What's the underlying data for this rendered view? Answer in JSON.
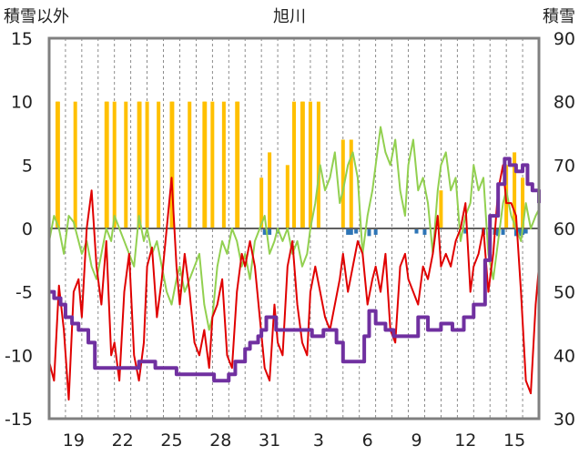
{
  "chart_data": {
    "type": "line",
    "title": "旭川",
    "left_axis_label": "積雪以外",
    "right_axis_label": "積雪",
    "left_axis": {
      "ylim": [
        -15,
        15
      ],
      "ticks": [
        "-15",
        "-10",
        "-5",
        "0",
        "5",
        "10",
        "15"
      ]
    },
    "right_axis": {
      "ylim": [
        30,
        90
      ],
      "ticks": [
        "30",
        "40",
        "50",
        "60",
        "70",
        "80",
        "90"
      ]
    },
    "x_tick_labels": [
      "19",
      "22",
      "25",
      "28",
      "31",
      "3",
      "6",
      "9",
      "12",
      "15"
    ],
    "grid": "vertical dashed",
    "colors": {
      "temperature": "#e00000",
      "sunshine": "#ffc000",
      "wind": "#92d050",
      "precip": "#2e75b6",
      "snow_depth": "#7030a0",
      "frame": "#808080",
      "zero_line": "#606060"
    },
    "series": [
      {
        "key": "temperature",
        "axis": "left",
        "x": [
          17.0,
          17.3,
          17.6,
          17.9,
          18.2,
          18.5,
          18.8,
          19.0,
          19.3,
          19.6,
          19.9,
          20.2,
          20.5,
          20.8,
          21.0,
          21.3,
          21.6,
          21.9,
          22.2,
          22.5,
          22.8,
          23.0,
          23.3,
          23.6,
          23.9,
          24.2,
          24.5,
          24.8,
          25.0,
          25.3,
          25.6,
          25.9,
          26.2,
          26.5,
          26.8,
          27.0,
          27.3,
          27.6,
          27.9,
          28.2,
          28.5,
          28.8,
          29.0,
          29.3,
          29.6,
          29.9,
          30.2,
          30.5,
          30.8,
          31.0,
          31.3,
          31.6,
          31.9,
          32.2,
          32.5,
          32.8,
          33.0,
          33.3,
          33.6,
          33.9,
          34.2,
          34.5,
          34.8,
          35.0,
          35.3,
          35.6,
          35.9,
          36.2,
          36.5,
          36.8,
          37.0,
          37.3,
          37.6,
          37.9,
          38.2,
          38.5,
          38.8,
          39.0,
          39.3,
          39.6,
          39.9,
          40.2,
          40.5,
          40.8,
          41.0,
          41.3,
          41.6,
          41.9,
          42.2,
          42.5,
          42.8,
          43.0,
          43.3,
          43.6,
          43.9,
          44.2,
          44.5,
          44.8,
          45.0,
          45.3,
          45.6,
          45.9,
          46.2,
          46.5,
          46.8,
          47.0
        ],
        "values": [
          -10.5,
          -12,
          -4.5,
          -8,
          -13.5,
          -5,
          -4,
          -7,
          0,
          3,
          -3,
          -6,
          -1,
          -10,
          -9,
          -12,
          -5,
          -2,
          -10,
          -12,
          -9,
          -3,
          -1.5,
          -7,
          -4,
          0,
          4,
          -3,
          -6,
          -2,
          -5,
          -9,
          -10,
          -8,
          -11,
          -7,
          -6,
          -4,
          -10,
          -11,
          -5,
          -2,
          -3,
          -1,
          -3,
          -7,
          -11,
          -12,
          -6,
          -9,
          -10,
          -3,
          -1,
          -6,
          -9,
          -10,
          -5,
          -3,
          -5,
          -7,
          -8,
          -6,
          -4,
          -2,
          -5,
          -3,
          -1,
          -2,
          -6,
          -4,
          -3,
          -5,
          -2,
          -8,
          -9,
          -3,
          -2,
          -4,
          -5,
          -6,
          -3,
          -4,
          -2,
          1,
          -3,
          -2,
          -3,
          -1,
          0,
          2,
          -5,
          -3,
          -2,
          0,
          -5,
          -2,
          3,
          5,
          2,
          2,
          1,
          -5,
          -12,
          -13,
          -6,
          -3
        ]
      },
      {
        "key": "wind",
        "axis": "left",
        "x": [
          17.0,
          17.3,
          17.6,
          17.9,
          18.2,
          18.5,
          18.8,
          19.0,
          19.3,
          19.6,
          19.9,
          20.2,
          20.5,
          20.8,
          21.0,
          21.3,
          21.6,
          21.9,
          22.2,
          22.5,
          22.8,
          23.0,
          23.3,
          23.6,
          23.9,
          24.2,
          24.5,
          24.8,
          25.0,
          25.3,
          25.6,
          25.9,
          26.2,
          26.5,
          26.8,
          27.0,
          27.3,
          27.6,
          27.9,
          28.2,
          28.5,
          28.8,
          29.0,
          29.3,
          29.6,
          29.9,
          30.2,
          30.5,
          30.8,
          31.0,
          31.3,
          31.6,
          31.9,
          32.2,
          32.5,
          32.8,
          33.0,
          33.3,
          33.6,
          33.9,
          34.2,
          34.5,
          34.8,
          35.0,
          35.3,
          35.6,
          35.9,
          36.2,
          36.5,
          36.8,
          37.0,
          37.3,
          37.6,
          37.9,
          38.2,
          38.5,
          38.8,
          39.0,
          39.3,
          39.6,
          39.9,
          40.2,
          40.5,
          40.8,
          41.0,
          41.3,
          41.6,
          41.9,
          42.2,
          42.5,
          42.8,
          43.0,
          43.3,
          43.6,
          43.9,
          44.2,
          44.5,
          44.8,
          45.0,
          45.3,
          45.6,
          45.9,
          46.2,
          46.5,
          46.8,
          47.0
        ],
        "values": [
          -1,
          1,
          0,
          -2,
          1,
          0.5,
          -1,
          -2,
          -1,
          -3,
          -4,
          -2,
          0,
          -1,
          1,
          0,
          -1,
          -2,
          -3,
          1,
          -1,
          0,
          -2,
          -1,
          -3,
          -5,
          -6,
          -4,
          -3,
          -5,
          -4,
          -3,
          -2,
          -6,
          -8,
          -7,
          -3,
          -1,
          -2,
          0,
          -1,
          -3,
          -2,
          -4,
          -1,
          0,
          1,
          -2,
          -1,
          0,
          -1,
          0,
          -2,
          -1,
          -3,
          -2,
          0,
          2,
          5,
          3,
          4,
          6,
          2,
          3,
          5,
          6,
          4,
          -2,
          1,
          3,
          5,
          8,
          6,
          5,
          7,
          3,
          1,
          5,
          7,
          3,
          4,
          2,
          -2,
          3,
          5,
          6,
          3,
          4,
          -1,
          1,
          2,
          5,
          3,
          4,
          -2,
          -4,
          -1,
          2,
          3,
          1,
          0,
          -1,
          2,
          0,
          1,
          1.5
        ]
      },
      {
        "key": "snow_depth",
        "axis": "right",
        "x": [
          17.0,
          17.3,
          17.7,
          18.0,
          18.4,
          18.8,
          19.0,
          19.4,
          19.8,
          20.2,
          20.4,
          21.0,
          21.8,
          22.5,
          22.7,
          23.5,
          24.6,
          24.8,
          25.0,
          25.8,
          26.6,
          27.1,
          27.3,
          27.8,
          28.0,
          28.4,
          29.0,
          29.3,
          29.8,
          30.0,
          30.3,
          30.9,
          31.6,
          32.0,
          33.1,
          33.5,
          33.8,
          34.6,
          35.0,
          35.8,
          36.3,
          36.6,
          37.0,
          37.6,
          38.1,
          38.4,
          39.0,
          39.4,
          39.6,
          40.2,
          40.5,
          41.0,
          41.7,
          42.0,
          42.4,
          42.8,
          43.0,
          43.7,
          44.0,
          44.5,
          44.9,
          45.2,
          45.6,
          46.0,
          46.3,
          46.6,
          47.0
        ],
        "values": [
          50,
          49,
          48,
          46,
          45,
          44,
          44,
          42,
          38,
          38,
          38,
          38,
          38,
          39,
          39,
          38,
          38,
          37,
          37,
          37,
          37,
          36,
          36,
          36,
          37,
          39,
          41,
          42,
          43,
          44,
          46,
          44,
          44,
          44,
          43,
          43,
          44,
          42,
          39,
          39,
          43,
          47,
          45,
          44,
          43,
          43,
          43,
          43,
          46,
          44,
          44,
          45,
          44,
          44,
          46,
          46,
          48,
          55,
          62,
          67,
          71,
          70,
          69,
          70,
          67,
          66,
          64
        ]
      }
    ],
    "bars": [
      {
        "key": "sunshine",
        "axis": "left",
        "x": [
          17.5,
          17.55,
          18.6,
          20.5,
          20.55,
          21.0,
          21.7,
          22.5,
          22.55,
          23.0,
          23.7,
          24.5,
          24.55,
          25.6,
          26.5,
          26.55,
          27.0,
          27.7,
          28.5,
          28.55,
          30.0,
          30.5,
          31.6,
          32.0,
          32.5,
          32.55,
          33.0,
          33.5,
          35.0,
          35.5,
          41.0,
          45.0,
          45.5,
          46.0
        ],
        "values": [
          10,
          10,
          10,
          10,
          10,
          10,
          10,
          10,
          10,
          10,
          10,
          10,
          10,
          10,
          10,
          10,
          10,
          10,
          10,
          10,
          4,
          6,
          5,
          10,
          10,
          10,
          10,
          10,
          7,
          7,
          3,
          5,
          6,
          4
        ]
      },
      {
        "key": "precip",
        "axis": "left",
        "x": [
          30.2,
          30.5,
          31.0,
          35.3,
          35.5,
          35.8,
          36.6,
          37.0,
          39.5,
          40.0,
          42.5,
          43.6,
          44.3,
          44.5,
          44.8,
          45.6,
          45.8,
          46.0,
          46.2
        ],
        "values": [
          -0.5,
          -0.5,
          -0.4,
          -0.5,
          -0.5,
          -0.4,
          -0.6,
          -0.5,
          -0.4,
          -0.5,
          -0.4,
          -0.5,
          -0.5,
          -0.6,
          -0.5,
          -0.6,
          -0.6,
          -0.5,
          -0.4
        ]
      }
    ]
  }
}
